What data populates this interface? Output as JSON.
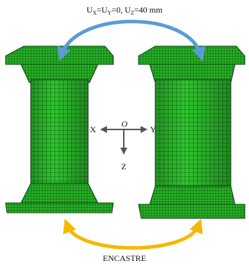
{
  "top_label": [
    {
      "text": "U",
      "sub": "X"
    },
    {
      "text": "=U",
      "sub": "Y"
    },
    {
      "text": "=0, U",
      "sub": "Z"
    },
    {
      "text": "=40 mm"
    }
  ],
  "axes": {
    "origin": "O",
    "x": "X",
    "y": "Y",
    "z": "Z"
  },
  "bottom_label": "ENCASTRE"
}
